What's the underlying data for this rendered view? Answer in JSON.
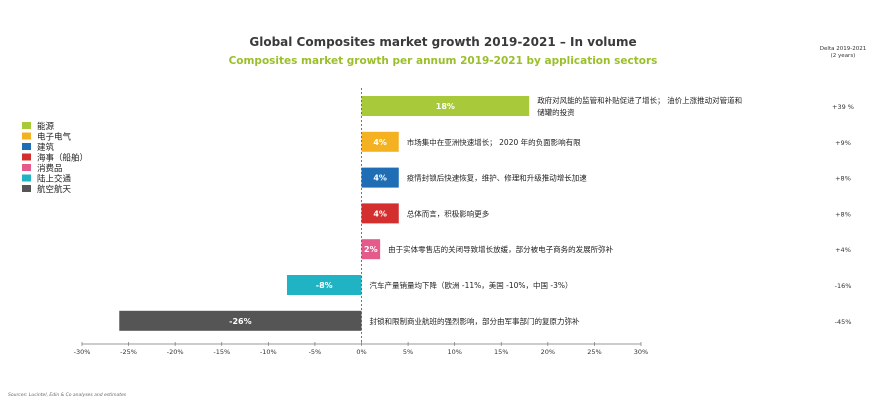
{
  "chart_data": {
    "type": "bar",
    "orientation": "horizontal",
    "title": "Global Composites market growth 2019-2021 – In volume",
    "subtitle": "Composites market growth per annum 2019-2021 by application sectors",
    "delta_header": [
      "Delta 2019-2021",
      "(2 years)"
    ],
    "xlim": [
      -30,
      30
    ],
    "xticks": [
      "-30%",
      "-25%",
      "-20%",
      "-15%",
      "-10%",
      "-5%",
      "0%",
      "5%",
      "10%",
      "15%",
      "20%",
      "25%",
      "30%"
    ],
    "tick_values": [
      -30,
      -25,
      -20,
      -15,
      -10,
      -5,
      0,
      5,
      10,
      15,
      20,
      25,
      30
    ],
    "bars": [
      {
        "category": "能源",
        "value": 18,
        "label": "18%",
        "color": "#a8c93a",
        "note": [
          "政府对风能的监管和补贴促进了增长；  油价上涨推动对管道和",
          "储罐的投资"
        ],
        "delta": "+39 %"
      },
      {
        "category": "电子电气",
        "value": 4,
        "label": "4%",
        "color": "#f4b223",
        "note": [
          "市场集中在亚洲快速增长；  2020 年的负面影响有限"
        ],
        "delta": "+9%"
      },
      {
        "category": "建筑",
        "value": 4,
        "label": "4%",
        "color": "#1f6db5",
        "note": [
          "疫情封锁后快速恢复，维护、修理和升级推动增长加速"
        ],
        "delta": "+8%"
      },
      {
        "category": "海事（船舶）",
        "value": 4,
        "label": "4%",
        "color": "#d32f2f",
        "note": [
          "总体而言，积极影响更多"
        ],
        "delta": "+8%"
      },
      {
        "category": "消费品",
        "value": 2,
        "label": "2%",
        "color": "#e45a8b",
        "note": [
          "由于实体零售店的关闭导致增长放缓，部分被电子商务的发展所弥补"
        ],
        "delta": "+4%"
      },
      {
        "category": "陆上交通",
        "value": -8,
        "label": "-8%",
        "color": "#1fb3c4",
        "note": [
          "汽车产量销量均下降（欧洲 -11%，美国 -10%，中国 -3%）"
        ],
        "delta": "-16%"
      },
      {
        "category": "航空航天",
        "value": -26,
        "label": "-26%",
        "color": "#555555",
        "note": [
          "封锁和限制商业航班的强烈影响，部分由军事部门的复原力弥补"
        ],
        "delta": "-45%"
      }
    ],
    "legend": [
      {
        "label": "能源",
        "color": "#a8c93a"
      },
      {
        "label": "电子电气",
        "color": "#f4b223"
      },
      {
        "label": "建筑",
        "color": "#1f6db5"
      },
      {
        "label": "海事（船舶）",
        "color": "#d32f2f"
      },
      {
        "label": "消费品",
        "color": "#e45a8b"
      },
      {
        "label": "陆上交通",
        "color": "#1fb3c4"
      },
      {
        "label": "航空航天",
        "color": "#555555"
      }
    ],
    "source": "Sources: Lucintel, Edin & Co analyses and estimates"
  }
}
